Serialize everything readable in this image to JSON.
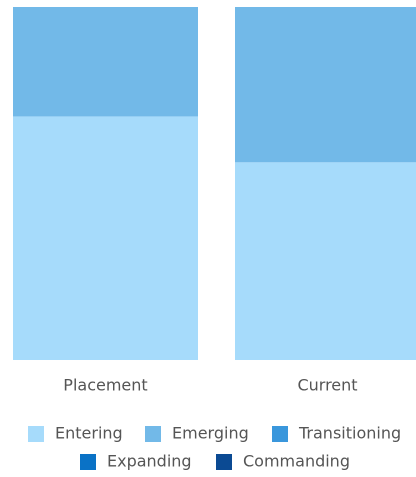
{
  "chart_data": {
    "type": "stacked_bar",
    "categories": [
      "Placement",
      "Current"
    ],
    "series": [
      {
        "name": "Entering",
        "color": "#a6dbfb",
        "values": [
          69,
          56
        ]
      },
      {
        "name": "Emerging",
        "color": "#72b9e8",
        "values": [
          31,
          44
        ]
      },
      {
        "name": "Transitioning",
        "color": "#3a97dc",
        "values": [
          0,
          0
        ]
      },
      {
        "name": "Expanding",
        "color": "#0a72c6",
        "values": [
          0,
          0
        ]
      },
      {
        "name": "Commanding",
        "color": "#0b4a93",
        "values": [
          0,
          0
        ]
      }
    ],
    "ylim": [
      0,
      100
    ]
  }
}
